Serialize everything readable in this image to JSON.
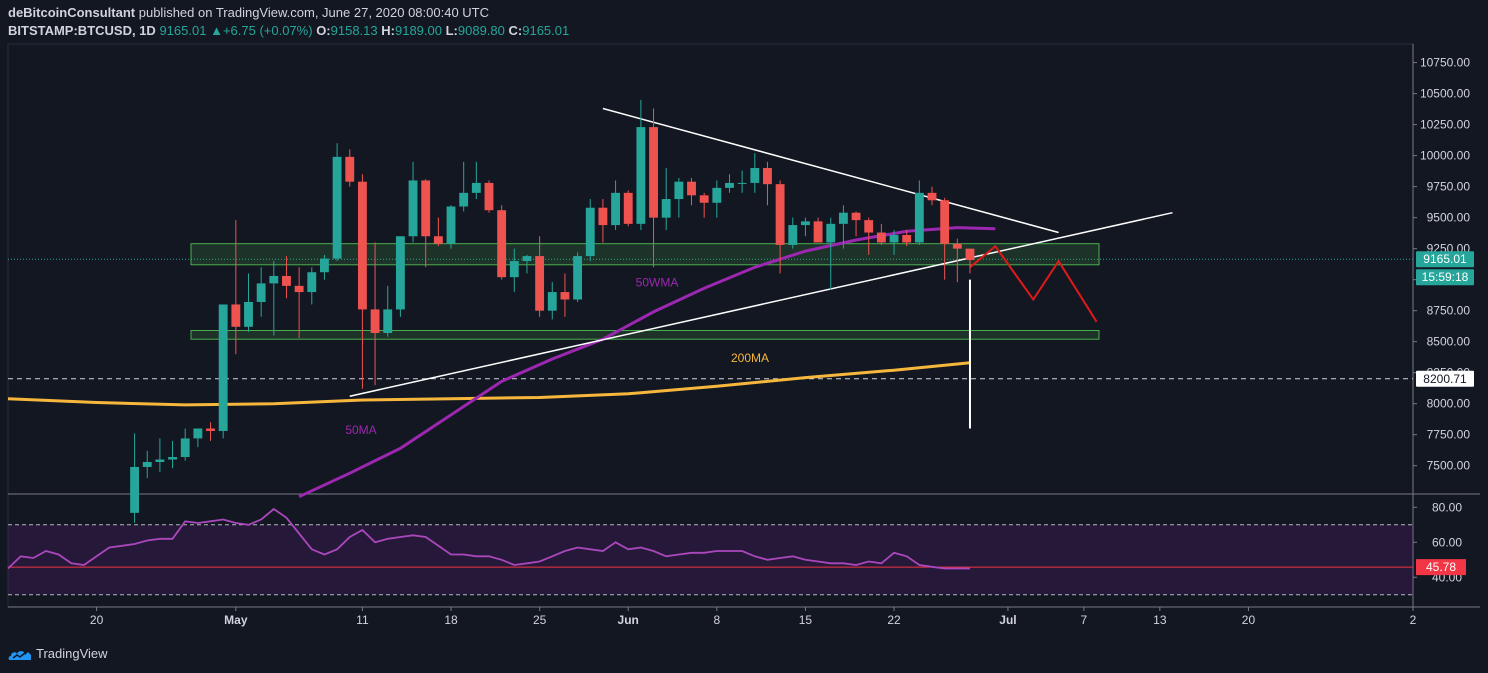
{
  "header": {
    "publisher": "deBitcoinConsultant",
    "published_text": "published on TradingView.com, June 27, 2020 08:00:40 UTC",
    "symbol": "BITSTAMP:BTCUSD, 1D",
    "last": "9165.01",
    "change": "+6.75 (+0.07%)",
    "o_label": "O:",
    "o": "9158.13",
    "h_label": "H:",
    "h": "9189.00",
    "l_label": "L:",
    "l": "9089.80",
    "c_label": "C:",
    "c": "9165.01"
  },
  "footer": {
    "brand": "TradingView"
  },
  "colors": {
    "background": "#131722",
    "up": "#26a69a",
    "down": "#ef5350",
    "ma200": "#f6b73c",
    "ma50": "#9c27b0",
    "rsi": "#ab47bc",
    "zone": "#4caf50",
    "projection": "#e01919",
    "rsi_value_bg": "#f23645",
    "price_tag_bg": "#26a69a"
  },
  "chart_data": [
    {
      "type": "candlestick",
      "title": "",
      "y_axis_ticks": [
        "10750.00",
        "10500.00",
        "10250.00",
        "10000.00",
        "9750.00",
        "9500.00",
        "9250.00",
        "9000.00",
        "8750.00",
        "8500.00",
        "8250.00",
        "8000.00",
        "7750.00",
        "7500.00"
      ],
      "ylim": [
        7280,
        10900
      ],
      "x_axis_ticks": [
        "20",
        "May",
        "11",
        "18",
        "25",
        "Jun",
        "8",
        "15",
        "22",
        "Jul",
        "7",
        "13",
        "20",
        "2"
      ],
      "x_day_range": [
        "2020-04-13",
        "2020-08-02"
      ],
      "price_tags": {
        "last": "9165.01",
        "countdown": "15:59:18",
        "level": "8200.71"
      },
      "annotations": {
        "ma200_label": "200MA",
        "ma50_label": "50MA",
        "wma50_label": "50WMA"
      },
      "candles": [
        {
          "d": "2020-04-23",
          "o": 7120,
          "h": 7760,
          "l": 7040,
          "c": 7490
        },
        {
          "d": "2020-04-24",
          "o": 7490,
          "h": 7620,
          "l": 7400,
          "c": 7530
        },
        {
          "d": "2020-04-25",
          "o": 7530,
          "h": 7720,
          "l": 7450,
          "c": 7550
        },
        {
          "d": "2020-04-26",
          "o": 7550,
          "h": 7700,
          "l": 7480,
          "c": 7570
        },
        {
          "d": "2020-04-27",
          "o": 7570,
          "h": 7800,
          "l": 7540,
          "c": 7720
        },
        {
          "d": "2020-04-28",
          "o": 7720,
          "h": 7800,
          "l": 7650,
          "c": 7800
        },
        {
          "d": "2020-04-29",
          "o": 7800,
          "h": 7850,
          "l": 7700,
          "c": 7780
        },
        {
          "d": "2020-04-30",
          "o": 7780,
          "h": 8800,
          "l": 7720,
          "c": 8800
        },
        {
          "d": "2020-05-01",
          "o": 8800,
          "h": 9480,
          "l": 8400,
          "c": 8620
        },
        {
          "d": "2020-05-02",
          "o": 8620,
          "h": 9050,
          "l": 8580,
          "c": 8820
        },
        {
          "d": "2020-05-03",
          "o": 8820,
          "h": 9100,
          "l": 8700,
          "c": 8970
        },
        {
          "d": "2020-05-04",
          "o": 8970,
          "h": 9150,
          "l": 8550,
          "c": 9030
        },
        {
          "d": "2020-05-05",
          "o": 9030,
          "h": 9190,
          "l": 8850,
          "c": 8950
        },
        {
          "d": "2020-05-06",
          "o": 8950,
          "h": 9100,
          "l": 8530,
          "c": 8900
        },
        {
          "d": "2020-05-07",
          "o": 8900,
          "h": 9100,
          "l": 8800,
          "c": 9060
        },
        {
          "d": "2020-05-08",
          "o": 9060,
          "h": 9200,
          "l": 9000,
          "c": 9170
        },
        {
          "d": "2020-05-09",
          "o": 9170,
          "h": 10100,
          "l": 9150,
          "c": 9990
        },
        {
          "d": "2020-05-10",
          "o": 9990,
          "h": 10050,
          "l": 9750,
          "c": 9790
        },
        {
          "d": "2020-05-11",
          "o": 9790,
          "h": 9850,
          "l": 8120,
          "c": 8760
        },
        {
          "d": "2020-05-12",
          "o": 8760,
          "h": 9300,
          "l": 8150,
          "c": 8570
        },
        {
          "d": "2020-05-13",
          "o": 8570,
          "h": 8950,
          "l": 8540,
          "c": 8760
        },
        {
          "d": "2020-05-14",
          "o": 8760,
          "h": 9350,
          "l": 8700,
          "c": 9350
        },
        {
          "d": "2020-05-15",
          "o": 9350,
          "h": 9950,
          "l": 9300,
          "c": 9800
        },
        {
          "d": "2020-05-16",
          "o": 9800,
          "h": 9810,
          "l": 9100,
          "c": 9350
        },
        {
          "d": "2020-05-17",
          "o": 9350,
          "h": 9500,
          "l": 9270,
          "c": 9290
        },
        {
          "d": "2020-05-18",
          "o": 9290,
          "h": 9600,
          "l": 9250,
          "c": 9590
        },
        {
          "d": "2020-05-19",
          "o": 9590,
          "h": 9950,
          "l": 9550,
          "c": 9700
        },
        {
          "d": "2020-05-20",
          "o": 9700,
          "h": 9950,
          "l": 9650,
          "c": 9780
        },
        {
          "d": "2020-05-21",
          "o": 9780,
          "h": 9800,
          "l": 9540,
          "c": 9560
        },
        {
          "d": "2020-05-22",
          "o": 9560,
          "h": 9600,
          "l": 9000,
          "c": 9020
        },
        {
          "d": "2020-05-23",
          "o": 9020,
          "h": 9250,
          "l": 8900,
          "c": 9150
        },
        {
          "d": "2020-05-24",
          "o": 9150,
          "h": 9200,
          "l": 9050,
          "c": 9190
        },
        {
          "d": "2020-05-25",
          "o": 9190,
          "h": 9350,
          "l": 8700,
          "c": 8750
        },
        {
          "d": "2020-05-26",
          "o": 8750,
          "h": 8980,
          "l": 8680,
          "c": 8900
        },
        {
          "d": "2020-05-27",
          "o": 8900,
          "h": 9050,
          "l": 8700,
          "c": 8840
        },
        {
          "d": "2020-05-28",
          "o": 8840,
          "h": 9220,
          "l": 8820,
          "c": 9190
        },
        {
          "d": "2020-05-29",
          "o": 9190,
          "h": 9650,
          "l": 9150,
          "c": 9580
        },
        {
          "d": "2020-05-30",
          "o": 9580,
          "h": 9650,
          "l": 9300,
          "c": 9440
        },
        {
          "d": "2020-05-31",
          "o": 9440,
          "h": 9800,
          "l": 9400,
          "c": 9700
        },
        {
          "d": "2020-06-01",
          "o": 9700,
          "h": 9720,
          "l": 9430,
          "c": 9450
        },
        {
          "d": "2020-06-02",
          "o": 9450,
          "h": 10450,
          "l": 9400,
          "c": 10230
        },
        {
          "d": "2020-06-03",
          "o": 10230,
          "h": 10380,
          "l": 9100,
          "c": 9500
        },
        {
          "d": "2020-06-04",
          "o": 9500,
          "h": 9900,
          "l": 9400,
          "c": 9650
        },
        {
          "d": "2020-06-05",
          "o": 9650,
          "h": 9820,
          "l": 9500,
          "c": 9790
        },
        {
          "d": "2020-06-06",
          "o": 9790,
          "h": 9820,
          "l": 9600,
          "c": 9680
        },
        {
          "d": "2020-06-07",
          "o": 9680,
          "h": 9700,
          "l": 9500,
          "c": 9620
        },
        {
          "d": "2020-06-08",
          "o": 9620,
          "h": 9800,
          "l": 9500,
          "c": 9740
        },
        {
          "d": "2020-06-09",
          "o": 9740,
          "h": 9850,
          "l": 9700,
          "c": 9780
        },
        {
          "d": "2020-06-10",
          "o": 9780,
          "h": 9880,
          "l": 9700,
          "c": 9780
        },
        {
          "d": "2020-06-11",
          "o": 9780,
          "h": 10020,
          "l": 9700,
          "c": 9900
        },
        {
          "d": "2020-06-12",
          "o": 9900,
          "h": 9950,
          "l": 9600,
          "c": 9770
        },
        {
          "d": "2020-06-13",
          "o": 9770,
          "h": 9800,
          "l": 9050,
          "c": 9280
        },
        {
          "d": "2020-06-14",
          "o": 9280,
          "h": 9500,
          "l": 9250,
          "c": 9440
        },
        {
          "d": "2020-06-15",
          "o": 9440,
          "h": 9500,
          "l": 9350,
          "c": 9470
        },
        {
          "d": "2020-06-16",
          "o": 9470,
          "h": 9500,
          "l": 9300,
          "c": 9300
        },
        {
          "d": "2020-06-17",
          "o": 9300,
          "h": 9500,
          "l": 8920,
          "c": 9450
        },
        {
          "d": "2020-06-18",
          "o": 9450,
          "h": 9600,
          "l": 9250,
          "c": 9540
        },
        {
          "d": "2020-06-19",
          "o": 9540,
          "h": 9550,
          "l": 9350,
          "c": 9480
        },
        {
          "d": "2020-06-20",
          "o": 9480,
          "h": 9500,
          "l": 9200,
          "c": 9380
        },
        {
          "d": "2020-06-21",
          "o": 9380,
          "h": 9450,
          "l": 9280,
          "c": 9300
        },
        {
          "d": "2020-06-22",
          "o": 9300,
          "h": 9400,
          "l": 9200,
          "c": 9360
        },
        {
          "d": "2020-06-23",
          "o": 9360,
          "h": 9400,
          "l": 9270,
          "c": 9300
        },
        {
          "d": "2020-06-24",
          "o": 9300,
          "h": 9800,
          "l": 9280,
          "c": 9700
        },
        {
          "d": "2020-06-25",
          "o": 9700,
          "h": 9750,
          "l": 9600,
          "c": 9640
        },
        {
          "d": "2020-06-26",
          "o": 9640,
          "h": 9660,
          "l": 9000,
          "c": 9290
        },
        {
          "d": "2020-06-27",
          "o": 9290,
          "h": 9330,
          "l": 8980,
          "c": 9250
        },
        {
          "d": "2020-06-28",
          "o": 9250,
          "h": 9250,
          "l": 9050,
          "c": 9158
        }
      ],
      "ma200": [
        {
          "d": "2020-04-13",
          "v": 8040
        },
        {
          "d": "2020-04-20",
          "v": 8010
        },
        {
          "d": "2020-04-27",
          "v": 7990
        },
        {
          "d": "2020-05-04",
          "v": 8000
        },
        {
          "d": "2020-05-11",
          "v": 8030
        },
        {
          "d": "2020-05-18",
          "v": 8040
        },
        {
          "d": "2020-05-25",
          "v": 8050
        },
        {
          "d": "2020-06-01",
          "v": 8080
        },
        {
          "d": "2020-06-08",
          "v": 8140
        },
        {
          "d": "2020-06-15",
          "v": 8210
        },
        {
          "d": "2020-06-22",
          "v": 8270
        },
        {
          "d": "2020-06-28",
          "v": 8330
        }
      ],
      "ma50": [
        {
          "d": "2020-05-06",
          "v": 7250
        },
        {
          "d": "2020-05-10",
          "v": 7440
        },
        {
          "d": "2020-05-14",
          "v": 7640
        },
        {
          "d": "2020-05-18",
          "v": 7910
        },
        {
          "d": "2020-05-22",
          "v": 8180
        },
        {
          "d": "2020-05-26",
          "v": 8360
        },
        {
          "d": "2020-05-30",
          "v": 8520
        },
        {
          "d": "2020-06-03",
          "v": 8740
        },
        {
          "d": "2020-06-07",
          "v": 8930
        },
        {
          "d": "2020-06-11",
          "v": 9100
        },
        {
          "d": "2020-06-15",
          "v": 9230
        },
        {
          "d": "2020-06-19",
          "v": 9320
        },
        {
          "d": "2020-06-23",
          "v": 9390
        },
        {
          "d": "2020-06-27",
          "v": 9420
        },
        {
          "d": "2020-06-30",
          "v": 9410
        }
      ],
      "zones": [
        [
          9120,
          9290
        ],
        [
          8520,
          8590
        ]
      ],
      "trendlines": [
        [
          {
            "d": "2020-05-30",
            "v": 10380
          },
          {
            "d": "2020-07-05",
            "v": 9380
          }
        ],
        [
          {
            "d": "2020-05-10",
            "v": 8060
          },
          {
            "d": "2020-07-14",
            "v": 9540
          }
        ]
      ],
      "vertical_drop": [
        {
          "d": "2020-06-28",
          "v": 9000
        },
        {
          "d": "2020-06-28",
          "v": 7800
        }
      ],
      "projection": [
        {
          "d": "2020-06-28",
          "v": 9100
        },
        {
          "d": "2020-06-30",
          "v": 9270
        },
        {
          "d": "2020-07-03",
          "v": 8840
        },
        {
          "d": "2020-07-05",
          "v": 9150
        },
        {
          "d": "2020-07-08",
          "v": 8660
        }
      ]
    },
    {
      "type": "line",
      "series": [
        {
          "name": "RSI",
          "values": [
            45,
            52,
            51,
            55,
            53,
            48,
            47,
            52,
            57,
            58,
            59,
            61,
            62,
            62,
            72,
            71,
            72,
            73,
            71,
            70,
            73,
            79,
            74,
            65,
            56,
            53,
            56,
            63,
            67,
            60,
            62,
            63,
            64,
            63,
            58,
            53,
            53,
            52,
            52,
            50,
            47,
            48,
            49,
            52,
            55,
            57,
            56,
            55,
            60,
            56,
            57,
            55,
            52,
            53,
            54,
            54,
            55,
            55,
            55,
            52,
            50,
            51,
            52,
            50,
            49,
            48,
            48,
            47,
            49,
            48,
            54,
            52,
            47,
            46,
            45,
            45,
            45
          ]
        }
      ],
      "y_axis_ticks": [
        "80.00",
        "60.00",
        "40.00"
      ],
      "ylim": [
        23,
        87
      ],
      "band": [
        30,
        70
      ],
      "value_tag": "45.78",
      "mid_line": 45.78
    }
  ]
}
